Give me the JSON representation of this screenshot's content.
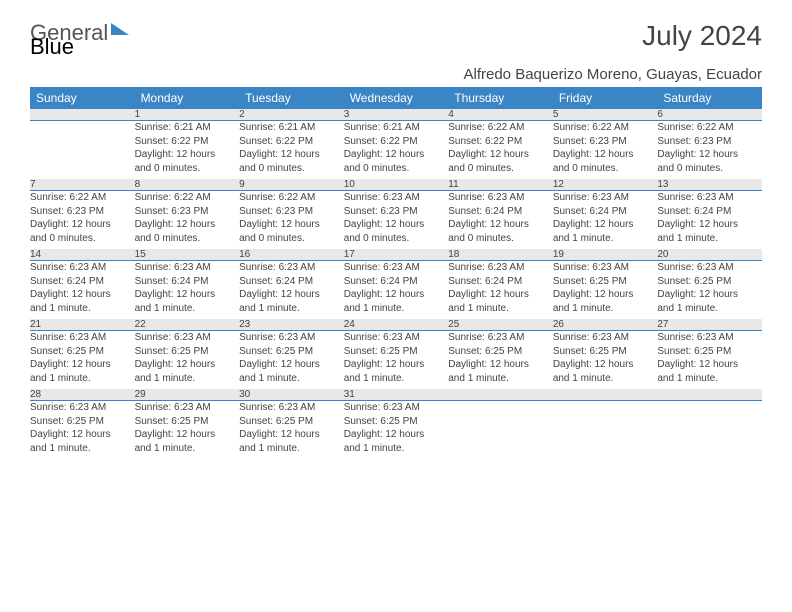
{
  "brand": {
    "part1": "General",
    "part2": "Blue"
  },
  "title": "July 2024",
  "location": "Alfredo Baquerizo Moreno, Guayas, Ecuador",
  "colors": {
    "header_bg": "#3a85c6",
    "header_text": "#ffffff",
    "daynum_bg": "#e8e8e8",
    "daynum_border": "#3a85c6",
    "text": "#444444",
    "page_bg": "#ffffff"
  },
  "typography": {
    "title_fontsize": 28,
    "location_fontsize": 15,
    "header_fontsize": 12,
    "daynum_fontsize": 11,
    "cell_fontsize": 10
  },
  "weekdays": [
    "Sunday",
    "Monday",
    "Tuesday",
    "Wednesday",
    "Thursday",
    "Friday",
    "Saturday"
  ],
  "weeks": [
    {
      "nums": [
        "",
        "1",
        "2",
        "3",
        "4",
        "5",
        "6"
      ],
      "cells": [
        null,
        {
          "sunrise": "Sunrise: 6:21 AM",
          "sunset": "Sunset: 6:22 PM",
          "day1": "Daylight: 12 hours",
          "day2": "and 0 minutes."
        },
        {
          "sunrise": "Sunrise: 6:21 AM",
          "sunset": "Sunset: 6:22 PM",
          "day1": "Daylight: 12 hours",
          "day2": "and 0 minutes."
        },
        {
          "sunrise": "Sunrise: 6:21 AM",
          "sunset": "Sunset: 6:22 PM",
          "day1": "Daylight: 12 hours",
          "day2": "and 0 minutes."
        },
        {
          "sunrise": "Sunrise: 6:22 AM",
          "sunset": "Sunset: 6:22 PM",
          "day1": "Daylight: 12 hours",
          "day2": "and 0 minutes."
        },
        {
          "sunrise": "Sunrise: 6:22 AM",
          "sunset": "Sunset: 6:23 PM",
          "day1": "Daylight: 12 hours",
          "day2": "and 0 minutes."
        },
        {
          "sunrise": "Sunrise: 6:22 AM",
          "sunset": "Sunset: 6:23 PM",
          "day1": "Daylight: 12 hours",
          "day2": "and 0 minutes."
        }
      ]
    },
    {
      "nums": [
        "7",
        "8",
        "9",
        "10",
        "11",
        "12",
        "13"
      ],
      "cells": [
        {
          "sunrise": "Sunrise: 6:22 AM",
          "sunset": "Sunset: 6:23 PM",
          "day1": "Daylight: 12 hours",
          "day2": "and 0 minutes."
        },
        {
          "sunrise": "Sunrise: 6:22 AM",
          "sunset": "Sunset: 6:23 PM",
          "day1": "Daylight: 12 hours",
          "day2": "and 0 minutes."
        },
        {
          "sunrise": "Sunrise: 6:22 AM",
          "sunset": "Sunset: 6:23 PM",
          "day1": "Daylight: 12 hours",
          "day2": "and 0 minutes."
        },
        {
          "sunrise": "Sunrise: 6:23 AM",
          "sunset": "Sunset: 6:23 PM",
          "day1": "Daylight: 12 hours",
          "day2": "and 0 minutes."
        },
        {
          "sunrise": "Sunrise: 6:23 AM",
          "sunset": "Sunset: 6:24 PM",
          "day1": "Daylight: 12 hours",
          "day2": "and 0 minutes."
        },
        {
          "sunrise": "Sunrise: 6:23 AM",
          "sunset": "Sunset: 6:24 PM",
          "day1": "Daylight: 12 hours",
          "day2": "and 1 minute."
        },
        {
          "sunrise": "Sunrise: 6:23 AM",
          "sunset": "Sunset: 6:24 PM",
          "day1": "Daylight: 12 hours",
          "day2": "and 1 minute."
        }
      ]
    },
    {
      "nums": [
        "14",
        "15",
        "16",
        "17",
        "18",
        "19",
        "20"
      ],
      "cells": [
        {
          "sunrise": "Sunrise: 6:23 AM",
          "sunset": "Sunset: 6:24 PM",
          "day1": "Daylight: 12 hours",
          "day2": "and 1 minute."
        },
        {
          "sunrise": "Sunrise: 6:23 AM",
          "sunset": "Sunset: 6:24 PM",
          "day1": "Daylight: 12 hours",
          "day2": "and 1 minute."
        },
        {
          "sunrise": "Sunrise: 6:23 AM",
          "sunset": "Sunset: 6:24 PM",
          "day1": "Daylight: 12 hours",
          "day2": "and 1 minute."
        },
        {
          "sunrise": "Sunrise: 6:23 AM",
          "sunset": "Sunset: 6:24 PM",
          "day1": "Daylight: 12 hours",
          "day2": "and 1 minute."
        },
        {
          "sunrise": "Sunrise: 6:23 AM",
          "sunset": "Sunset: 6:24 PM",
          "day1": "Daylight: 12 hours",
          "day2": "and 1 minute."
        },
        {
          "sunrise": "Sunrise: 6:23 AM",
          "sunset": "Sunset: 6:25 PM",
          "day1": "Daylight: 12 hours",
          "day2": "and 1 minute."
        },
        {
          "sunrise": "Sunrise: 6:23 AM",
          "sunset": "Sunset: 6:25 PM",
          "day1": "Daylight: 12 hours",
          "day2": "and 1 minute."
        }
      ]
    },
    {
      "nums": [
        "21",
        "22",
        "23",
        "24",
        "25",
        "26",
        "27"
      ],
      "cells": [
        {
          "sunrise": "Sunrise: 6:23 AM",
          "sunset": "Sunset: 6:25 PM",
          "day1": "Daylight: 12 hours",
          "day2": "and 1 minute."
        },
        {
          "sunrise": "Sunrise: 6:23 AM",
          "sunset": "Sunset: 6:25 PM",
          "day1": "Daylight: 12 hours",
          "day2": "and 1 minute."
        },
        {
          "sunrise": "Sunrise: 6:23 AM",
          "sunset": "Sunset: 6:25 PM",
          "day1": "Daylight: 12 hours",
          "day2": "and 1 minute."
        },
        {
          "sunrise": "Sunrise: 6:23 AM",
          "sunset": "Sunset: 6:25 PM",
          "day1": "Daylight: 12 hours",
          "day2": "and 1 minute."
        },
        {
          "sunrise": "Sunrise: 6:23 AM",
          "sunset": "Sunset: 6:25 PM",
          "day1": "Daylight: 12 hours",
          "day2": "and 1 minute."
        },
        {
          "sunrise": "Sunrise: 6:23 AM",
          "sunset": "Sunset: 6:25 PM",
          "day1": "Daylight: 12 hours",
          "day2": "and 1 minute."
        },
        {
          "sunrise": "Sunrise: 6:23 AM",
          "sunset": "Sunset: 6:25 PM",
          "day1": "Daylight: 12 hours",
          "day2": "and 1 minute."
        }
      ]
    },
    {
      "nums": [
        "28",
        "29",
        "30",
        "31",
        "",
        "",
        ""
      ],
      "cells": [
        {
          "sunrise": "Sunrise: 6:23 AM",
          "sunset": "Sunset: 6:25 PM",
          "day1": "Daylight: 12 hours",
          "day2": "and 1 minute."
        },
        {
          "sunrise": "Sunrise: 6:23 AM",
          "sunset": "Sunset: 6:25 PM",
          "day1": "Daylight: 12 hours",
          "day2": "and 1 minute."
        },
        {
          "sunrise": "Sunrise: 6:23 AM",
          "sunset": "Sunset: 6:25 PM",
          "day1": "Daylight: 12 hours",
          "day2": "and 1 minute."
        },
        {
          "sunrise": "Sunrise: 6:23 AM",
          "sunset": "Sunset: 6:25 PM",
          "day1": "Daylight: 12 hours",
          "day2": "and 1 minute."
        },
        null,
        null,
        null
      ]
    }
  ]
}
